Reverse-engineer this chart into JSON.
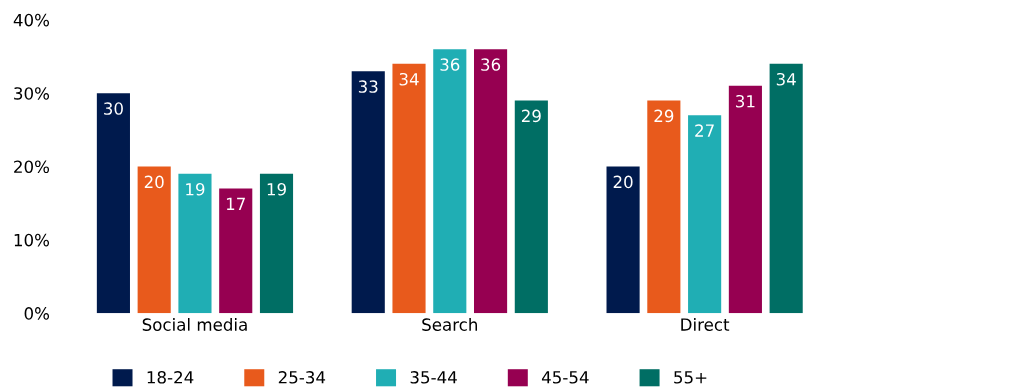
{
  "chart_data": {
    "type": "bar",
    "categories": [
      "Social media",
      "Search",
      "Direct"
    ],
    "series": [
      {
        "name": "18-24",
        "color": "#001a4d",
        "values": [
          30,
          33,
          20
        ]
      },
      {
        "name": "25-34",
        "color": "#e85a1c",
        "values": [
          20,
          34,
          29
        ]
      },
      {
        "name": "35-44",
        "color": "#20aeb4",
        "values": [
          19,
          36,
          27
        ]
      },
      {
        "name": "45-54",
        "color": "#960051",
        "values": [
          17,
          36,
          31
        ]
      },
      {
        "name": "55+",
        "color": "#006e64",
        "values": [
          19,
          29,
          34
        ]
      }
    ],
    "ylim": [
      0,
      40
    ],
    "yticks": [
      {
        "value": 0,
        "label": "0%"
      },
      {
        "value": 10,
        "label": "10%"
      },
      {
        "value": 20,
        "label": "20%"
      },
      {
        "value": 30,
        "label": "30%"
      },
      {
        "value": 40,
        "label": "40%"
      }
    ],
    "data_labels": true,
    "grid": false,
    "legend": "bottom"
  }
}
